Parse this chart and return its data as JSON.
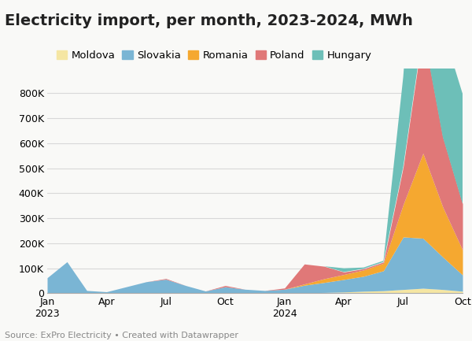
{
  "title": "Electricity import, per month, 2023-2024, MWh",
  "source": "Source: ExPro Electricity • Created with Datawrapper",
  "series": {
    "Moldova": [
      2000,
      1000,
      1000,
      1000,
      1000,
      1000,
      1000,
      1000,
      1000,
      1000,
      1000,
      1000,
      1000,
      2000,
      3000,
      5000,
      8000,
      10000,
      15000,
      20000,
      15000,
      8000
    ],
    "Slovakia": [
      60000,
      125000,
      10000,
      5000,
      25000,
      45000,
      55000,
      30000,
      8000,
      25000,
      15000,
      10000,
      15000,
      30000,
      40000,
      50000,
      60000,
      80000,
      210000,
      200000,
      130000,
      65000
    ],
    "Romania": [
      0,
      0,
      0,
      0,
      0,
      0,
      0,
      0,
      0,
      0,
      0,
      0,
      0,
      5000,
      15000,
      20000,
      25000,
      30000,
      130000,
      340000,
      200000,
      100000
    ],
    "Poland": [
      0,
      0,
      0,
      0,
      0,
      0,
      3000,
      0,
      0,
      5000,
      0,
      0,
      5000,
      80000,
      50000,
      10000,
      5000,
      5000,
      150000,
      490000,
      280000,
      185000
    ],
    "Hungary": [
      0,
      0,
      0,
      0,
      0,
      0,
      0,
      0,
      0,
      0,
      0,
      0,
      0,
      0,
      0,
      15000,
      5000,
      5000,
      360000,
      860000,
      430000,
      440000
    ]
  },
  "colors": {
    "Moldova": "#f5e6a3",
    "Slovakia": "#7ab5d4",
    "Romania": "#f5a830",
    "Poland": "#e07878",
    "Hungary": "#6dbfb8"
  },
  "tick_months": [
    0,
    3,
    6,
    9,
    12,
    15,
    18,
    21
  ],
  "tick_labels": [
    "Jan\n2023",
    "Apr",
    "Jul",
    "Oct",
    "Jan\n2024",
    "Apr",
    "Jul",
    "Oct"
  ],
  "n_months": 22,
  "ylim": [
    0,
    900000
  ],
  "yticks": [
    0,
    100000,
    200000,
    300000,
    400000,
    500000,
    600000,
    700000,
    800000
  ],
  "background_color": "#f9f9f7",
  "plot_bg_color": "#f9f9f7",
  "grid_color": "#d8d8d8",
  "title_fontsize": 14,
  "legend_fontsize": 9.5,
  "tick_fontsize": 9,
  "source_fontsize": 8
}
